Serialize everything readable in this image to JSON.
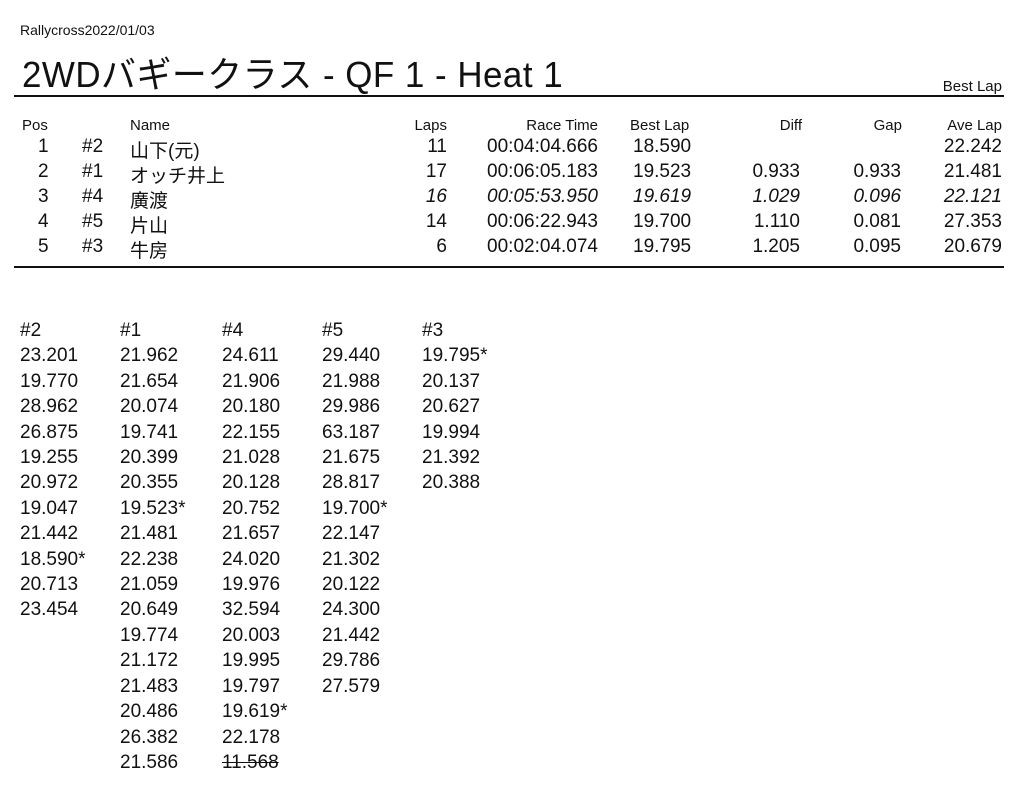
{
  "header": {
    "event": "Rallycross2022/01/03",
    "title": "2WDバギークラス  -  QF 1  -  Heat 1",
    "best_lap_tag": "Best Lap"
  },
  "results": {
    "columns": {
      "pos": "Pos",
      "name": "Name",
      "laps": "Laps",
      "race_time": "Race Time",
      "best_lap": "Best Lap",
      "diff": "Diff",
      "gap": "Gap",
      "ave_lap": "Ave Lap"
    },
    "rows": [
      {
        "pos": "1",
        "car": "#2",
        "name": "山下(元)",
        "laps": "11",
        "race_time": "00:04:04.666",
        "best_lap": "18.590",
        "diff": "",
        "gap": "",
        "ave_lap": "22.242",
        "italic": false
      },
      {
        "pos": "2",
        "car": "#1",
        "name": "オッチ井上",
        "laps": "17",
        "race_time": "00:06:05.183",
        "best_lap": "19.523",
        "diff": "0.933",
        "gap": "0.933",
        "ave_lap": "21.481",
        "italic": false
      },
      {
        "pos": "3",
        "car": "#4",
        "name": "廣渡",
        "laps": "16",
        "race_time": "00:05:53.950",
        "best_lap": "19.619",
        "diff": "1.029",
        "gap": "0.096",
        "ave_lap": "22.121",
        "italic": true
      },
      {
        "pos": "4",
        "car": "#5",
        "name": "片山",
        "laps": "14",
        "race_time": "00:06:22.943",
        "best_lap": "19.700",
        "diff": "1.110",
        "gap": "0.081",
        "ave_lap": "27.353",
        "italic": false
      },
      {
        "pos": "5",
        "car": "#3",
        "name": "牛房",
        "laps": "6",
        "race_time": "00:02:04.074",
        "best_lap": "19.795",
        "diff": "1.205",
        "gap": "0.095",
        "ave_lap": "20.679",
        "italic": false
      }
    ]
  },
  "lap_times": [
    {
      "car": "#2",
      "laps": [
        "23.201",
        "19.770",
        "28.962",
        "26.875",
        "19.255",
        "20.972",
        "19.047",
        "21.442",
        "18.590*",
        "20.713",
        "23.454"
      ],
      "struck": []
    },
    {
      "car": "#1",
      "laps": [
        "21.962",
        "21.654",
        "20.074",
        "19.741",
        "20.399",
        "20.355",
        "19.523*",
        "21.481",
        "22.238",
        "21.059",
        "20.649",
        "19.774",
        "21.172",
        "21.483",
        "20.486",
        "26.382",
        "21.586"
      ],
      "struck": []
    },
    {
      "car": "#4",
      "laps": [
        "24.611",
        "21.906",
        "20.180",
        "22.155",
        "21.028",
        "20.128",
        "20.752",
        "21.657",
        "24.020",
        "19.976",
        "32.594",
        "20.003",
        "19.995",
        "19.797",
        "19.619*",
        "22.178",
        "11.568"
      ],
      "struck": [
        16
      ]
    },
    {
      "car": "#5",
      "laps": [
        "29.440",
        "21.988",
        "29.986",
        "63.187",
        "21.675",
        "28.817",
        "19.700*",
        "22.147",
        "21.302",
        "20.122",
        "24.300",
        "21.442",
        "29.786",
        "27.579"
      ],
      "struck": []
    },
    {
      "car": "#3",
      "laps": [
        "19.795*",
        "20.137",
        "20.627",
        "19.994",
        "21.392",
        "20.388"
      ],
      "struck": []
    }
  ]
}
